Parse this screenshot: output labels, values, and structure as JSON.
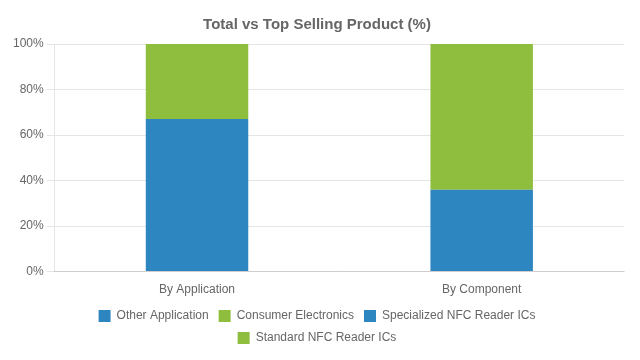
{
  "chart_data": {
    "type": "bar",
    "title": "Total vs Top Selling Product (%)",
    "categories": [
      "By Application",
      "By Component"
    ],
    "series": [
      {
        "name": "Other Application",
        "color": "#2e86c1",
        "values": [
          67,
          0
        ]
      },
      {
        "name": "Consumer Electronics",
        "color": "#8fbe3f",
        "values": [
          33,
          0
        ]
      },
      {
        "name": "Specialized NFC Reader ICs",
        "color": "#2e86c1",
        "values": [
          0,
          36
        ]
      },
      {
        "name": "Standard NFC Reader ICs",
        "color": "#8fbe3f",
        "values": [
          0,
          64
        ]
      }
    ],
    "stacked": true,
    "ylim": [
      0,
      100
    ],
    "yticks": [
      {
        "value": 0,
        "label": "0%"
      },
      {
        "value": 20,
        "label": "20%"
      },
      {
        "value": 40,
        "label": "40%"
      },
      {
        "value": 60,
        "label": "60%"
      },
      {
        "value": 80,
        "label": "80%"
      },
      {
        "value": 100,
        "label": "100%"
      }
    ],
    "grid": true,
    "legend": "bottom"
  }
}
